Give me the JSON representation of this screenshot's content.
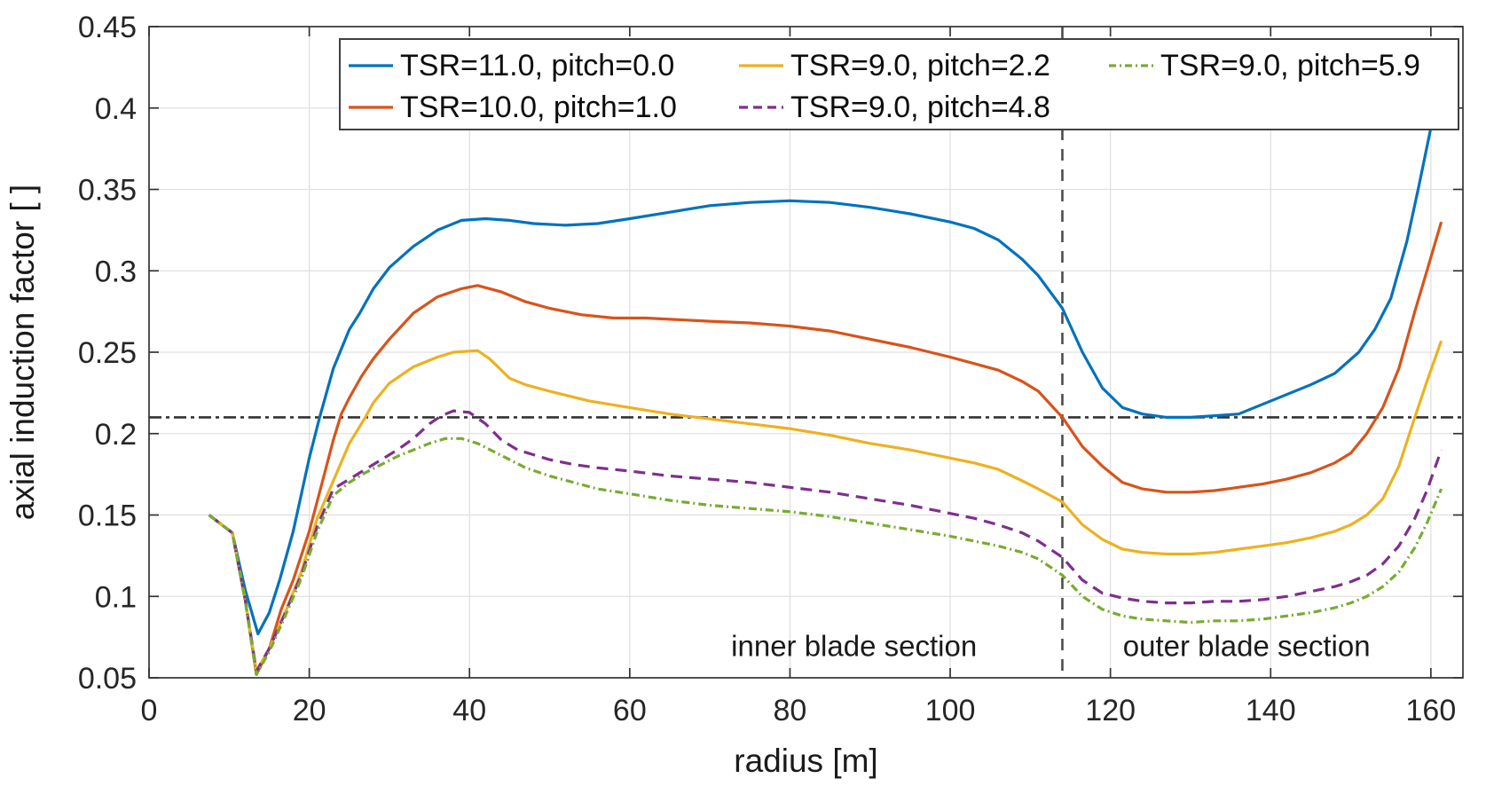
{
  "chart_data": {
    "type": "line",
    "title": "",
    "xlabel": "radius [m]",
    "ylabel": "axial induction factor [ ]",
    "xlim": [
      0,
      164
    ],
    "ylim": [
      0.05,
      0.45
    ],
    "grid": true,
    "grid_color": "#e0e0e0",
    "axis_color": "#333333",
    "tick_label_color": "#262626",
    "xtick_values": [
      0,
      20,
      40,
      60,
      80,
      100,
      120,
      140,
      160
    ],
    "xtick_labels": [
      "0",
      "20",
      "40",
      "60",
      "80",
      "100",
      "120",
      "140",
      "160"
    ],
    "ytick_values": [
      0.05,
      0.1,
      0.15,
      0.2,
      0.25,
      0.3,
      0.35,
      0.4,
      0.45
    ],
    "ytick_labels": [
      "0.05",
      "0.1",
      "0.15",
      "0.2",
      "0.25",
      "0.3",
      "0.35",
      "0.4",
      "0.45"
    ],
    "legend_position": "top-right-inside",
    "reference_lines": [
      {
        "name": "horizontal-reference-line",
        "orientation": "horizontal",
        "value": 0.21,
        "style": "dash-dot",
        "color": "#333333"
      },
      {
        "name": "blade-section-divider-line",
        "orientation": "vertical",
        "value": 114,
        "style": "dashed",
        "color": "#4d4d4d"
      }
    ],
    "annotations": [
      {
        "text": "inner blade section",
        "x": 88,
        "y": 0.07
      },
      {
        "text": "outer blade section",
        "x": 137,
        "y": 0.07
      }
    ],
    "series": [
      {
        "name": "TSR=11.0, pitch=0.0",
        "color": "#0072BD",
        "line_style": "solid",
        "points": [
          [
            7.5,
            0.15
          ],
          [
            10.4,
            0.139
          ],
          [
            12,
            0.104
          ],
          [
            13.6,
            0.077
          ],
          [
            15,
            0.09
          ],
          [
            16.3,
            0.11
          ],
          [
            18,
            0.14
          ],
          [
            20,
            0.185
          ],
          [
            21.3,
            0.21
          ],
          [
            23,
            0.24
          ],
          [
            25,
            0.264
          ],
          [
            26.3,
            0.274
          ],
          [
            28,
            0.289
          ],
          [
            30,
            0.302
          ],
          [
            33,
            0.315
          ],
          [
            36,
            0.325
          ],
          [
            39,
            0.331
          ],
          [
            42,
            0.332
          ],
          [
            45,
            0.331
          ],
          [
            48,
            0.329
          ],
          [
            52,
            0.328
          ],
          [
            56,
            0.329
          ],
          [
            60,
            0.332
          ],
          [
            65,
            0.336
          ],
          [
            70,
            0.34
          ],
          [
            75,
            0.342
          ],
          [
            80,
            0.343
          ],
          [
            85,
            0.342
          ],
          [
            90,
            0.339
          ],
          [
            95,
            0.335
          ],
          [
            100,
            0.33
          ],
          [
            103,
            0.326
          ],
          [
            106,
            0.319
          ],
          [
            109,
            0.307
          ],
          [
            111,
            0.297
          ],
          [
            114,
            0.277
          ],
          [
            116.5,
            0.25
          ],
          [
            119,
            0.228
          ],
          [
            121.5,
            0.216
          ],
          [
            124,
            0.212
          ],
          [
            127,
            0.21
          ],
          [
            130,
            0.21
          ],
          [
            133,
            0.211
          ],
          [
            136,
            0.212
          ],
          [
            139,
            0.218
          ],
          [
            142,
            0.224
          ],
          [
            145,
            0.23
          ],
          [
            148,
            0.237
          ],
          [
            151,
            0.25
          ],
          [
            153,
            0.264
          ],
          [
            155,
            0.283
          ],
          [
            157,
            0.318
          ],
          [
            158.5,
            0.352
          ],
          [
            160,
            0.388
          ],
          [
            161.3,
            0.425
          ]
        ]
      },
      {
        "name": "TSR=10.0, pitch=1.0",
        "color": "#D95319",
        "line_style": "solid",
        "points": [
          [
            7.5,
            0.15
          ],
          [
            10.4,
            0.139
          ],
          [
            12,
            0.098
          ],
          [
            13.4,
            0.052
          ],
          [
            15,
            0.068
          ],
          [
            16.5,
            0.092
          ],
          [
            18,
            0.11
          ],
          [
            20,
            0.14
          ],
          [
            21.5,
            0.168
          ],
          [
            23,
            0.196
          ],
          [
            24,
            0.212
          ],
          [
            25,
            0.222
          ],
          [
            26.5,
            0.235
          ],
          [
            28,
            0.246
          ],
          [
            30,
            0.258
          ],
          [
            33,
            0.274
          ],
          [
            36,
            0.284
          ],
          [
            39,
            0.289
          ],
          [
            41,
            0.291
          ],
          [
            44,
            0.287
          ],
          [
            47,
            0.281
          ],
          [
            50,
            0.277
          ],
          [
            54,
            0.273
          ],
          [
            58,
            0.271
          ],
          [
            62,
            0.271
          ],
          [
            66,
            0.27
          ],
          [
            70,
            0.269
          ],
          [
            75,
            0.268
          ],
          [
            80,
            0.266
          ],
          [
            85,
            0.263
          ],
          [
            90,
            0.258
          ],
          [
            95,
            0.253
          ],
          [
            100,
            0.247
          ],
          [
            103,
            0.243
          ],
          [
            106,
            0.239
          ],
          [
            109,
            0.232
          ],
          [
            111,
            0.226
          ],
          [
            114,
            0.21
          ],
          [
            116.5,
            0.192
          ],
          [
            119,
            0.18
          ],
          [
            121.5,
            0.17
          ],
          [
            124,
            0.166
          ],
          [
            127,
            0.164
          ],
          [
            130,
            0.164
          ],
          [
            133,
            0.165
          ],
          [
            136,
            0.167
          ],
          [
            139,
            0.169
          ],
          [
            142,
            0.172
          ],
          [
            145,
            0.176
          ],
          [
            148,
            0.182
          ],
          [
            150,
            0.188
          ],
          [
            152,
            0.2
          ],
          [
            154,
            0.216
          ],
          [
            156,
            0.24
          ],
          [
            158,
            0.275
          ],
          [
            159.5,
            0.3
          ],
          [
            161.3,
            0.33
          ]
        ]
      },
      {
        "name": "TSR=9.0, pitch=2.2",
        "color": "#EDB120",
        "line_style": "solid",
        "points": [
          [
            7.5,
            0.15
          ],
          [
            10.4,
            0.139
          ],
          [
            12,
            0.098
          ],
          [
            13.4,
            0.054
          ],
          [
            15,
            0.068
          ],
          [
            17,
            0.09
          ],
          [
            19,
            0.115
          ],
          [
            21,
            0.148
          ],
          [
            23,
            0.171
          ],
          [
            25,
            0.194
          ],
          [
            27,
            0.21
          ],
          [
            28,
            0.219
          ],
          [
            30,
            0.231
          ],
          [
            33,
            0.241
          ],
          [
            36,
            0.247
          ],
          [
            38,
            0.25
          ],
          [
            41,
            0.251
          ],
          [
            42.5,
            0.246
          ],
          [
            45,
            0.234
          ],
          [
            47,
            0.23
          ],
          [
            50,
            0.226
          ],
          [
            55,
            0.22
          ],
          [
            60,
            0.216
          ],
          [
            65,
            0.212
          ],
          [
            70,
            0.209
          ],
          [
            75,
            0.206
          ],
          [
            80,
            0.203
          ],
          [
            85,
            0.199
          ],
          [
            90,
            0.194
          ],
          [
            95,
            0.19
          ],
          [
            100,
            0.185
          ],
          [
            103,
            0.182
          ],
          [
            106,
            0.178
          ],
          [
            109,
            0.171
          ],
          [
            111,
            0.166
          ],
          [
            114,
            0.158
          ],
          [
            116.5,
            0.144
          ],
          [
            119,
            0.135
          ],
          [
            121.5,
            0.129
          ],
          [
            124,
            0.127
          ],
          [
            127,
            0.126
          ],
          [
            130,
            0.126
          ],
          [
            133,
            0.127
          ],
          [
            136,
            0.129
          ],
          [
            139,
            0.131
          ],
          [
            142,
            0.133
          ],
          [
            145,
            0.136
          ],
          [
            148,
            0.14
          ],
          [
            150,
            0.144
          ],
          [
            152,
            0.15
          ],
          [
            154,
            0.16
          ],
          [
            156,
            0.18
          ],
          [
            158,
            0.21
          ],
          [
            159.5,
            0.232
          ],
          [
            161.3,
            0.257
          ]
        ]
      },
      {
        "name": "TSR=9.0, pitch=4.8",
        "color": "#7E2F8E",
        "line_style": "dashed",
        "points": [
          [
            7.5,
            0.15
          ],
          [
            10.4,
            0.139
          ],
          [
            12,
            0.098
          ],
          [
            13.4,
            0.054
          ],
          [
            15,
            0.068
          ],
          [
            17,
            0.09
          ],
          [
            19,
            0.113
          ],
          [
            21,
            0.143
          ],
          [
            23,
            0.166
          ],
          [
            25,
            0.172
          ],
          [
            27,
            0.178
          ],
          [
            29,
            0.184
          ],
          [
            31,
            0.19
          ],
          [
            33,
            0.197
          ],
          [
            35,
            0.206
          ],
          [
            36.5,
            0.211
          ],
          [
            38,
            0.214
          ],
          [
            40,
            0.213
          ],
          [
            42,
            0.206
          ],
          [
            44,
            0.196
          ],
          [
            46,
            0.19
          ],
          [
            48,
            0.187
          ],
          [
            50,
            0.184
          ],
          [
            53,
            0.181
          ],
          [
            56,
            0.179
          ],
          [
            60,
            0.177
          ],
          [
            65,
            0.174
          ],
          [
            70,
            0.172
          ],
          [
            75,
            0.17
          ],
          [
            80,
            0.167
          ],
          [
            85,
            0.164
          ],
          [
            90,
            0.16
          ],
          [
            95,
            0.156
          ],
          [
            100,
            0.151
          ],
          [
            103,
            0.148
          ],
          [
            106,
            0.144
          ],
          [
            109,
            0.139
          ],
          [
            111,
            0.134
          ],
          [
            114,
            0.124
          ],
          [
            116.5,
            0.11
          ],
          [
            119,
            0.102
          ],
          [
            121.5,
            0.099
          ],
          [
            124,
            0.097
          ],
          [
            127,
            0.096
          ],
          [
            130,
            0.096
          ],
          [
            133,
            0.097
          ],
          [
            136,
            0.097
          ],
          [
            139,
            0.098
          ],
          [
            142,
            0.1
          ],
          [
            145,
            0.103
          ],
          [
            148,
            0.106
          ],
          [
            150,
            0.109
          ],
          [
            152,
            0.113
          ],
          [
            154,
            0.12
          ],
          [
            156,
            0.131
          ],
          [
            158,
            0.148
          ],
          [
            159.5,
            0.165
          ],
          [
            161.3,
            0.19
          ]
        ]
      },
      {
        "name": "TSR=9.0, pitch=5.9",
        "color": "#77AC30",
        "line_style": "dash-dot",
        "points": [
          [
            7.5,
            0.15
          ],
          [
            10.4,
            0.139
          ],
          [
            12,
            0.097
          ],
          [
            13.4,
            0.052
          ],
          [
            15,
            0.066
          ],
          [
            17,
            0.088
          ],
          [
            19,
            0.111
          ],
          [
            21,
            0.14
          ],
          [
            23,
            0.162
          ],
          [
            25,
            0.17
          ],
          [
            27,
            0.176
          ],
          [
            29,
            0.181
          ],
          [
            31,
            0.186
          ],
          [
            33,
            0.19
          ],
          [
            35,
            0.194
          ],
          [
            37,
            0.197
          ],
          [
            39,
            0.197
          ],
          [
            41,
            0.194
          ],
          [
            43,
            0.189
          ],
          [
            45,
            0.184
          ],
          [
            47,
            0.179
          ],
          [
            50,
            0.174
          ],
          [
            53,
            0.17
          ],
          [
            56,
            0.166
          ],
          [
            60,
            0.163
          ],
          [
            65,
            0.159
          ],
          [
            70,
            0.156
          ],
          [
            75,
            0.154
          ],
          [
            80,
            0.152
          ],
          [
            85,
            0.149
          ],
          [
            90,
            0.145
          ],
          [
            95,
            0.141
          ],
          [
            100,
            0.137
          ],
          [
            103,
            0.134
          ],
          [
            106,
            0.131
          ],
          [
            109,
            0.127
          ],
          [
            111,
            0.123
          ],
          [
            114,
            0.113
          ],
          [
            116.5,
            0.1
          ],
          [
            119,
            0.092
          ],
          [
            121.5,
            0.088
          ],
          [
            124,
            0.086
          ],
          [
            127,
            0.085
          ],
          [
            130,
            0.084
          ],
          [
            133,
            0.085
          ],
          [
            136,
            0.085
          ],
          [
            139,
            0.086
          ],
          [
            142,
            0.088
          ],
          [
            145,
            0.09
          ],
          [
            148,
            0.093
          ],
          [
            150,
            0.096
          ],
          [
            152,
            0.1
          ],
          [
            154,
            0.106
          ],
          [
            156,
            0.115
          ],
          [
            158,
            0.13
          ],
          [
            159.5,
            0.145
          ],
          [
            161.3,
            0.166
          ]
        ]
      }
    ]
  }
}
